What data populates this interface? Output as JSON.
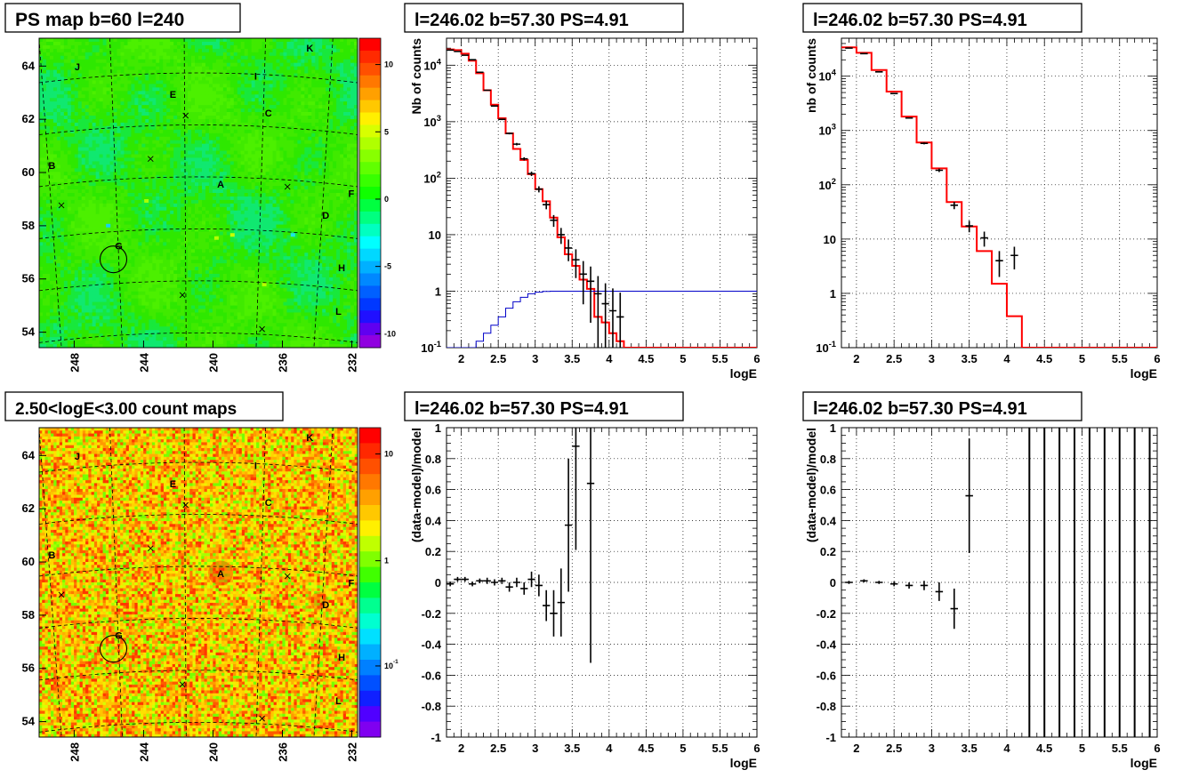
{
  "chart_data": [
    {
      "type": "heatmap",
      "title": "PS map b=60 l=240",
      "x_tick_labels": [
        "248",
        "244",
        "240",
        "236",
        "232"
      ],
      "y_tick_labels": [
        "54",
        "56",
        "58",
        "60",
        "62",
        "64"
      ],
      "colorbar_tick_labels": [
        "10",
        "5",
        "0",
        "-5",
        "-10"
      ],
      "colorbar_range": [
        -12,
        12
      ],
      "colorbar_scale": "linear",
      "source_labels": [
        "A",
        "B",
        "C",
        "D",
        "E",
        "F",
        "G",
        "H",
        "I",
        "J",
        "K",
        "L"
      ],
      "circled_source": "G",
      "background": "green"
    },
    {
      "type": "line",
      "title": "l=246.02 b=57.30 PS=4.91",
      "xlabel": "logE",
      "ylabel": "Nb of counts",
      "xlim": [
        1.8,
        6.0
      ],
      "ylim": [
        0.1,
        30000
      ],
      "yscale": "log",
      "grid": true,
      "x_tick_labels": [
        "2",
        "2.5",
        "3",
        "3.5",
        "4",
        "4.5",
        "5",
        "5.5",
        "6"
      ],
      "y_tick_labels": [
        "10^-1",
        "1",
        "10",
        "10^2",
        "10^3",
        "10^4"
      ],
      "series": [
        {
          "style": "step",
          "color": "#ff0000",
          "bin_edges": [
            1.8,
            1.9,
            2.0,
            2.1,
            2.2,
            2.3,
            2.4,
            2.5,
            2.6,
            2.7,
            2.8,
            2.9,
            3.0,
            3.1,
            3.2,
            3.3,
            3.4,
            3.5,
            3.6,
            3.7,
            3.8,
            3.9,
            4.0,
            4.1,
            4.2,
            6.0
          ],
          "values": [
            19000,
            18500,
            16000,
            12000,
            7200,
            3600,
            2000,
            1150,
            620,
            330,
            210,
            118,
            64,
            39,
            20,
            9,
            4.5,
            2.8,
            1.6,
            1.1,
            0.35,
            0.28,
            0.18,
            0.13,
            0.1
          ]
        },
        {
          "style": "step",
          "color": "#0000c8",
          "bin_edges": [
            1.8,
            2.2,
            2.3,
            2.4,
            2.5,
            2.6,
            2.7,
            2.8,
            2.9,
            3.0,
            3.1,
            3.2,
            6.0
          ],
          "values": [
            0.1,
            0.13,
            0.18,
            0.25,
            0.35,
            0.5,
            0.65,
            0.78,
            0.9,
            0.96,
            0.99,
            1.0
          ]
        },
        {
          "style": "errorbar",
          "color": "#000000",
          "x": [
            1.85,
            1.95,
            2.05,
            2.15,
            2.25,
            2.35,
            2.45,
            2.55,
            2.65,
            2.75,
            2.85,
            2.95,
            3.05,
            3.15,
            3.25,
            3.35,
            3.45,
            3.55,
            3.65,
            3.75,
            3.85,
            3.95,
            4.05,
            4.15
          ],
          "y": [
            18500,
            17500,
            15000,
            12500,
            7500,
            3600,
            1900,
            1100,
            620,
            400,
            220,
            120,
            64,
            34,
            18,
            10,
            5.8,
            3.6,
            2.0,
            1.5,
            0.9,
            0.6,
            0.45,
            0.35
          ]
        }
      ]
    },
    {
      "type": "line",
      "title": "l=246.02 b=57.30 PS=4.91",
      "xlabel": "logE",
      "ylabel": "nb of counts",
      "xlim": [
        1.8,
        6.0
      ],
      "ylim": [
        0.1,
        50000
      ],
      "yscale": "log",
      "grid": true,
      "x_tick_labels": [
        "2",
        "2.5",
        "3",
        "3.5",
        "4",
        "4.5",
        "5",
        "5.5",
        "6"
      ],
      "y_tick_labels": [
        "10^-1",
        "1",
        "10",
        "10^2",
        "10^3",
        "10^4"
      ],
      "series": [
        {
          "style": "step",
          "color": "#ff0000",
          "bin_edges": [
            1.8,
            2.0,
            2.2,
            2.4,
            2.6,
            2.8,
            3.0,
            3.2,
            3.4,
            3.6,
            3.8,
            4.0,
            4.2,
            6.0
          ],
          "values": [
            34000,
            27000,
            13000,
            5200,
            1800,
            600,
            200,
            48,
            17,
            6,
            1.5,
            0.38,
            0.1
          ]
        },
        {
          "style": "errorbar",
          "color": "#000000",
          "x": [
            1.9,
            2.1,
            2.3,
            2.5,
            2.7,
            2.9,
            3.1,
            3.3,
            3.5,
            3.7,
            3.9,
            4.1
          ],
          "y": [
            33000,
            26000,
            12000,
            4800,
            1700,
            580,
            185,
            42,
            17.5,
            10.5,
            4.0,
            5.0
          ]
        }
      ]
    },
    {
      "type": "heatmap",
      "title": "2.50<logE<3.00 count maps",
      "x_tick_labels": [
        "248",
        "244",
        "240",
        "236",
        "232"
      ],
      "y_tick_labels": [
        "54",
        "56",
        "58",
        "60",
        "62",
        "64"
      ],
      "colorbar_tick_labels": [
        "10",
        "1",
        "10^-1"
      ],
      "colorbar_range": [
        0.02,
        30
      ],
      "colorbar_scale": "log",
      "source_labels": [
        "A",
        "B",
        "C",
        "D",
        "E",
        "F",
        "G",
        "H",
        "I",
        "J",
        "K",
        "L"
      ],
      "circled_source": "G",
      "background": "noisy yellow-orange"
    },
    {
      "type": "scatter",
      "title": "l=246.02 b=57.30 PS=4.91",
      "xlabel": "logE",
      "ylabel": "(data-model)/model",
      "xlim": [
        1.8,
        6.0
      ],
      "ylim": [
        -1,
        1
      ],
      "grid": true,
      "x_tick_labels": [
        "2",
        "2.5",
        "3",
        "3.5",
        "4",
        "4.5",
        "5",
        "5.5",
        "6"
      ],
      "y_tick_labels": [
        "-1",
        "-0.8",
        "-0.6",
        "-0.4",
        "-0.2",
        "0",
        "0.2",
        "0.4",
        "0.6",
        "0.8",
        "1"
      ],
      "series": [
        {
          "style": "errorbar",
          "color": "#000000",
          "x": [
            1.85,
            1.95,
            2.05,
            2.15,
            2.25,
            2.35,
            2.45,
            2.55,
            2.65,
            2.75,
            2.85,
            2.95,
            3.05,
            3.15,
            3.25,
            3.35,
            3.45,
            3.55,
            3.75
          ],
          "y": [
            -0.01,
            0.02,
            0.02,
            -0.01,
            0.01,
            0.01,
            0.0,
            0.01,
            -0.03,
            0.0,
            -0.04,
            0.02,
            -0.02,
            -0.15,
            -0.2,
            -0.13,
            0.37,
            0.88,
            0.64
          ],
          "yerr": [
            0.015,
            0.015,
            0.015,
            0.015,
            0.015,
            0.02,
            0.02,
            0.02,
            0.03,
            0.03,
            0.04,
            0.05,
            0.07,
            0.1,
            0.15,
            0.22,
            0.43,
            0.67,
            1.16
          ]
        }
      ]
    },
    {
      "type": "scatter",
      "title": "l=246.02 b=57.30 PS=4.91",
      "xlabel": "logE",
      "ylabel": "(data-model)/model",
      "xlim": [
        1.8,
        6.0
      ],
      "ylim": [
        -1,
        1
      ],
      "grid": true,
      "x_tick_labels": [
        "2",
        "2.5",
        "3",
        "3.5",
        "4",
        "4.5",
        "5",
        "5.5",
        "6"
      ],
      "y_tick_labels": [
        "-1",
        "-0.8",
        "-0.6",
        "-0.4",
        "-0.2",
        "0",
        "0.2",
        "0.4",
        "0.6",
        "0.8",
        "1"
      ],
      "series": [
        {
          "style": "errorbar",
          "color": "#000000",
          "x": [
            1.9,
            2.1,
            2.3,
            2.5,
            2.7,
            2.9,
            3.1,
            3.3,
            3.5
          ],
          "y": [
            0.0,
            0.01,
            0.0,
            -0.01,
            -0.02,
            -0.02,
            -0.06,
            -0.17,
            0.56
          ],
          "yerr": [
            0.01,
            0.01,
            0.01,
            0.015,
            0.02,
            0.03,
            0.06,
            0.13,
            0.37
          ]
        },
        {
          "style": "vlines",
          "color": "#000000",
          "x": [
            4.3,
            4.5,
            4.7,
            4.9,
            5.1,
            5.3,
            5.5,
            5.7,
            5.9
          ]
        }
      ]
    }
  ]
}
